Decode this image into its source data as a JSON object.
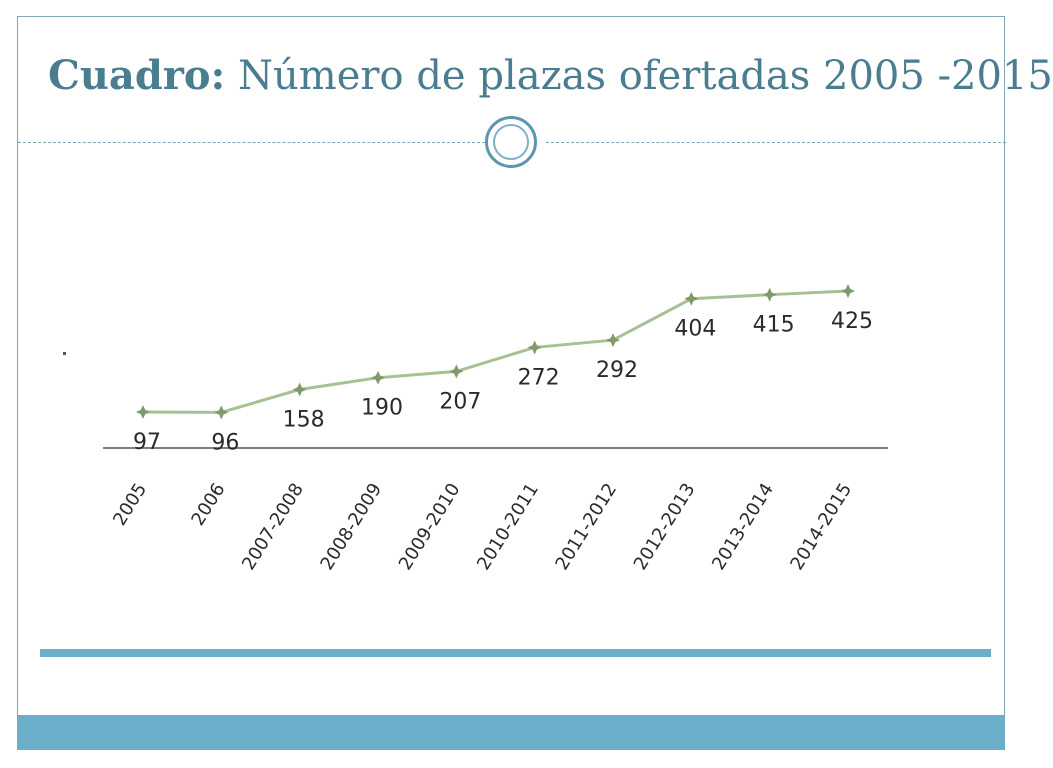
{
  "slide": {
    "title_bold": "Cuadro:",
    "title_rest": " Número de plazas ofertadas 2005 -2015"
  },
  "colors": {
    "accent": "#6aaec9",
    "title": "#4a7d8f",
    "line": "#a6c194",
    "marker": "#7f9a6c"
  },
  "chart_data": {
    "type": "line",
    "categories": [
      "2005",
      "2006",
      "2007-2008",
      "2008-2009",
      "2009-2010",
      "2010-2011",
      "2011-2012",
      "2012-2013",
      "2013-2014",
      "2014-2015"
    ],
    "values": [
      97,
      96,
      158,
      190,
      207,
      272,
      292,
      404,
      415,
      425
    ],
    "title": "",
    "xlabel": "",
    "ylabel": "",
    "grid": false,
    "legend": "none"
  }
}
